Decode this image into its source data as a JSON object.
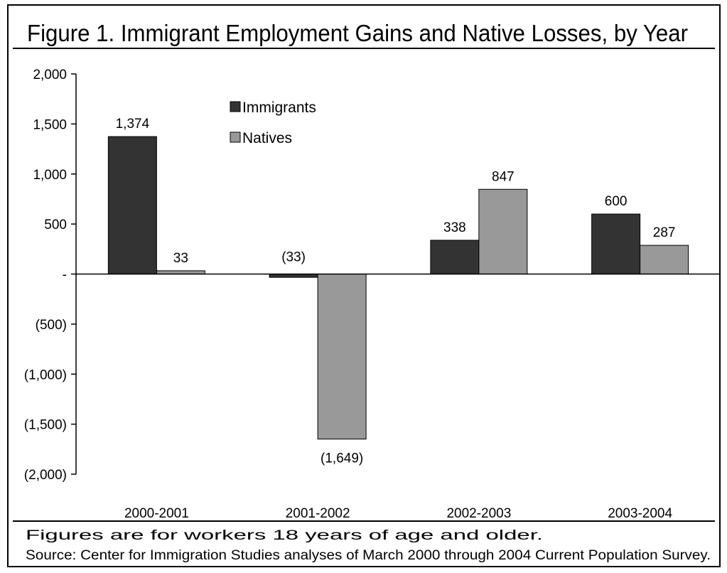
{
  "chart_data": {
    "type": "bar",
    "title": "Figure 1. Immigrant Employment Gains and Native Losses, by Year",
    "xlabel": "",
    "ylabel": "",
    "categories": [
      "2000-2001",
      "2001-2002",
      "2002-2003",
      "2003-2004"
    ],
    "series": [
      {
        "name": "Immigrants",
        "color": "#333333",
        "values": [
          1374,
          -33,
          338,
          600
        ],
        "labels": [
          "1,374",
          "(33)",
          "338",
          "600"
        ]
      },
      {
        "name": "Natives",
        "color": "#999999",
        "values": [
          33,
          -1649,
          847,
          287
        ],
        "labels": [
          "33",
          "(1,649)",
          "847",
          "287"
        ]
      }
    ],
    "ylim": [
      -2000,
      2000
    ],
    "yticks": [
      2000,
      1500,
      1000,
      500,
      0,
      -500,
      -1000,
      -1500,
      -2000
    ],
    "ytick_labels": [
      "2,000",
      "1,500",
      "1,000",
      "500",
      "-",
      "(500)",
      "(1,000)",
      "(1,500)",
      "(2,000)"
    ],
    "grid": false,
    "legend_position": "top-center"
  },
  "notes": [
    "Figures are for workers 18 years of age and older.",
    "Source: Center for Immigration Studies analyses of March 2000 through 2004 Current Population Survey."
  ]
}
